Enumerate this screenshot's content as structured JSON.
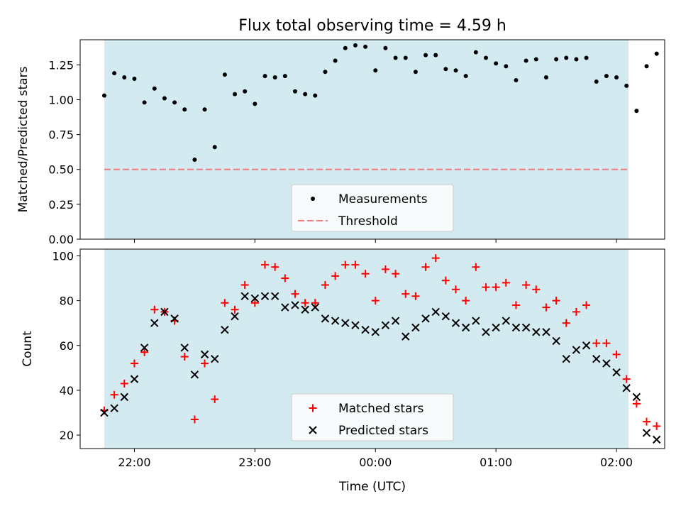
{
  "figure": {
    "title": "Flux total observing time = 4.59 h"
  },
  "chart_data": [
    {
      "type": "scatter",
      "title": "Flux total observing time = 4.59 h",
      "xlabel": "",
      "ylabel": "Matched/Predicted stars",
      "ylim": [
        0,
        1.43
      ],
      "yticks": [
        "0.00",
        "0.25",
        "0.50",
        "0.75",
        "1.00",
        "1.25"
      ],
      "xlim": [
        "21:33",
        "02:24"
      ],
      "shaded_span": [
        "21:45",
        "02:06"
      ],
      "shaded_color": "#d4eaf1",
      "grid": false,
      "legend_position": "lower-center",
      "series": [
        {
          "name": "Measurements",
          "marker": "dot",
          "color": "#000000",
          "points": [
            [
              "21:45",
              1.03
            ],
            [
              "21:50",
              1.19
            ],
            [
              "21:55",
              1.16
            ],
            [
              "22:00",
              1.15
            ],
            [
              "22:05",
              0.98
            ],
            [
              "22:10",
              1.08
            ],
            [
              "22:15",
              1.01
            ],
            [
              "22:20",
              0.98
            ],
            [
              "22:25",
              0.93
            ],
            [
              "22:30",
              0.57
            ],
            [
              "22:35",
              0.93
            ],
            [
              "22:40",
              0.66
            ],
            [
              "22:45",
              1.18
            ],
            [
              "22:50",
              1.04
            ],
            [
              "22:55",
              1.06
            ],
            [
              "23:00",
              0.97
            ],
            [
              "23:05",
              1.17
            ],
            [
              "23:10",
              1.16
            ],
            [
              "23:15",
              1.17
            ],
            [
              "23:20",
              1.06
            ],
            [
              "23:25",
              1.04
            ],
            [
              "23:30",
              1.03
            ],
            [
              "23:35",
              1.2
            ],
            [
              "23:40",
              1.28
            ],
            [
              "23:45",
              1.37
            ],
            [
              "23:50",
              1.39
            ],
            [
              "23:55",
              1.38
            ],
            [
              "00:00",
              1.21
            ],
            [
              "00:05",
              1.37
            ],
            [
              "00:10",
              1.3
            ],
            [
              "00:15",
              1.3
            ],
            [
              "00:20",
              1.2
            ],
            [
              "00:25",
              1.32
            ],
            [
              "00:30",
              1.32
            ],
            [
              "00:35",
              1.22
            ],
            [
              "00:40",
              1.21
            ],
            [
              "00:45",
              1.17
            ],
            [
              "00:50",
              1.34
            ],
            [
              "00:55",
              1.3
            ],
            [
              "01:00",
              1.26
            ],
            [
              "01:05",
              1.24
            ],
            [
              "01:10",
              1.14
            ],
            [
              "01:15",
              1.28
            ],
            [
              "01:20",
              1.29
            ],
            [
              "01:25",
              1.16
            ],
            [
              "01:30",
              1.29
            ],
            [
              "01:35",
              1.3
            ],
            [
              "01:40",
              1.29
            ],
            [
              "01:45",
              1.3
            ],
            [
              "01:50",
              1.13
            ],
            [
              "01:55",
              1.17
            ],
            [
              "02:00",
              1.16
            ],
            [
              "02:05",
              1.1
            ],
            [
              "02:10",
              0.92
            ],
            [
              "02:15",
              1.24
            ],
            [
              "02:20",
              1.33
            ]
          ]
        },
        {
          "name": "Threshold",
          "type": "line",
          "style": "dashed",
          "color": "#f07a80",
          "points": [
            [
              "21:45",
              0.5
            ],
            [
              "02:06",
              0.5
            ]
          ]
        }
      ]
    },
    {
      "type": "scatter",
      "title": "",
      "xlabel": "Time (UTC)",
      "ylabel": "Count",
      "ylim": [
        14,
        103
      ],
      "yticks": [
        "20",
        "40",
        "60",
        "80",
        "100"
      ],
      "xlim": [
        "21:33",
        "02:24"
      ],
      "xticks": [
        "22:00",
        "23:00",
        "00:00",
        "01:00",
        "02:00"
      ],
      "shaded_span": [
        "21:45",
        "02:06"
      ],
      "shaded_color": "#d4eaf1",
      "grid": false,
      "legend_position": "lower-center",
      "series": [
        {
          "name": "Matched stars",
          "marker": "plus",
          "color": "#ff0000",
          "points": [
            [
              "21:45",
              31
            ],
            [
              "21:50",
              38
            ],
            [
              "21:55",
              43
            ],
            [
              "22:00",
              52
            ],
            [
              "22:05",
              57
            ],
            [
              "22:10",
              76
            ],
            [
              "22:15",
              75
            ],
            [
              "22:20",
              71
            ],
            [
              "22:25",
              55
            ],
            [
              "22:30",
              27
            ],
            [
              "22:35",
              52
            ],
            [
              "22:40",
              36
            ],
            [
              "22:45",
              79
            ],
            [
              "22:50",
              76
            ],
            [
              "22:55",
              87
            ],
            [
              "23:00",
              79
            ],
            [
              "23:05",
              96
            ],
            [
              "23:10",
              95
            ],
            [
              "23:15",
              90
            ],
            [
              "23:20",
              83
            ],
            [
              "23:25",
              79
            ],
            [
              "23:30",
              79
            ],
            [
              "23:35",
              87
            ],
            [
              "23:40",
              91
            ],
            [
              "23:45",
              96
            ],
            [
              "23:50",
              96
            ],
            [
              "23:55",
              92
            ],
            [
              "00:00",
              80
            ],
            [
              "00:05",
              94
            ],
            [
              "00:10",
              92
            ],
            [
              "00:15",
              83
            ],
            [
              "00:20",
              82
            ],
            [
              "00:25",
              95
            ],
            [
              "00:30",
              99
            ],
            [
              "00:35",
              89
            ],
            [
              "00:40",
              85
            ],
            [
              "00:45",
              80
            ],
            [
              "00:50",
              95
            ],
            [
              "00:55",
              86
            ],
            [
              "01:00",
              86
            ],
            [
              "01:05",
              88
            ],
            [
              "01:10",
              78
            ],
            [
              "01:15",
              87
            ],
            [
              "01:20",
              85
            ],
            [
              "01:25",
              77
            ],
            [
              "01:30",
              80
            ],
            [
              "01:35",
              70
            ],
            [
              "01:40",
              75
            ],
            [
              "01:45",
              78
            ],
            [
              "01:50",
              61
            ],
            [
              "01:55",
              61
            ],
            [
              "02:00",
              56
            ],
            [
              "02:05",
              45
            ],
            [
              "02:10",
              34
            ],
            [
              "02:15",
              26
            ],
            [
              "02:20",
              24
            ]
          ]
        },
        {
          "name": "Predicted stars",
          "marker": "x",
          "color": "#000000",
          "points": [
            [
              "21:45",
              30
            ],
            [
              "21:50",
              32
            ],
            [
              "21:55",
              37
            ],
            [
              "22:00",
              45
            ],
            [
              "22:05",
              59
            ],
            [
              "22:10",
              70
            ],
            [
              "22:15",
              75
            ],
            [
              "22:20",
              72
            ],
            [
              "22:25",
              59
            ],
            [
              "22:30",
              47
            ],
            [
              "22:35",
              56
            ],
            [
              "22:40",
              54
            ],
            [
              "22:45",
              67
            ],
            [
              "22:50",
              73
            ],
            [
              "22:55",
              82
            ],
            [
              "23:00",
              81
            ],
            [
              "23:05",
              82
            ],
            [
              "23:10",
              82
            ],
            [
              "23:15",
              77
            ],
            [
              "23:20",
              78
            ],
            [
              "23:25",
              76
            ],
            [
              "23:30",
              77
            ],
            [
              "23:35",
              72
            ],
            [
              "23:40",
              71
            ],
            [
              "23:45",
              70
            ],
            [
              "23:50",
              69
            ],
            [
              "23:55",
              67
            ],
            [
              "00:00",
              66
            ],
            [
              "00:05",
              69
            ],
            [
              "00:10",
              71
            ],
            [
              "00:15",
              64
            ],
            [
              "00:20",
              68
            ],
            [
              "00:25",
              72
            ],
            [
              "00:30",
              75
            ],
            [
              "00:35",
              73
            ],
            [
              "00:40",
              70
            ],
            [
              "00:45",
              68
            ],
            [
              "00:50",
              71
            ],
            [
              "00:55",
              66
            ],
            [
              "01:00",
              68
            ],
            [
              "01:05",
              71
            ],
            [
              "01:10",
              68
            ],
            [
              "01:15",
              68
            ],
            [
              "01:20",
              66
            ],
            [
              "01:25",
              66
            ],
            [
              "01:30",
              62
            ],
            [
              "01:35",
              54
            ],
            [
              "01:40",
              58
            ],
            [
              "01:45",
              60
            ],
            [
              "01:50",
              54
            ],
            [
              "01:55",
              52
            ],
            [
              "02:00",
              48
            ],
            [
              "02:05",
              41
            ],
            [
              "02:10",
              37
            ],
            [
              "02:15",
              21
            ],
            [
              "02:20",
              18
            ]
          ]
        }
      ]
    }
  ]
}
